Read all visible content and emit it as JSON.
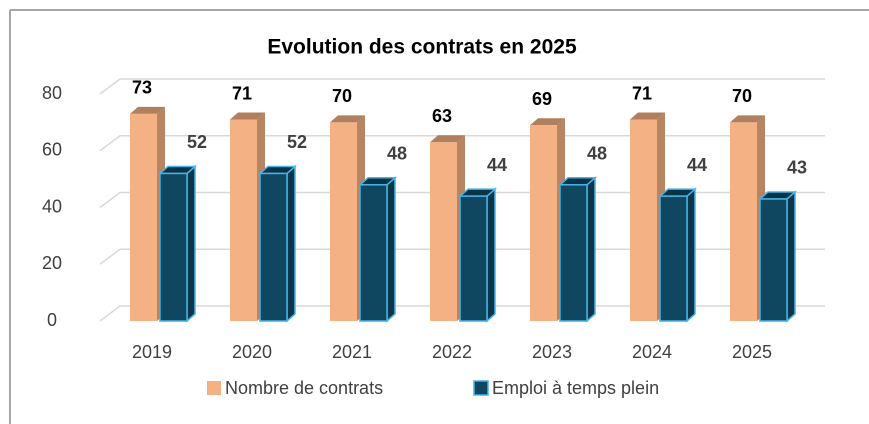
{
  "chart_data": {
    "type": "bar3d",
    "title": "Evolution des contrats en 2025",
    "categories": [
      "2019",
      "2020",
      "2021",
      "2022",
      "2023",
      "2024",
      "2025"
    ],
    "series": [
      {
        "name": "Nombre de contrats",
        "color": "#f4b183",
        "values": [
          73,
          71,
          70,
          63,
          69,
          71,
          70
        ]
      },
      {
        "name": "Emploi à temps plein",
        "color": "#0f4761",
        "values": [
          52,
          52,
          48,
          44,
          48,
          44,
          43
        ]
      }
    ],
    "ylim": [
      0,
      80
    ],
    "yticks": [
      0,
      20,
      40,
      60,
      80
    ],
    "grid": true,
    "legend": "bottom"
  }
}
